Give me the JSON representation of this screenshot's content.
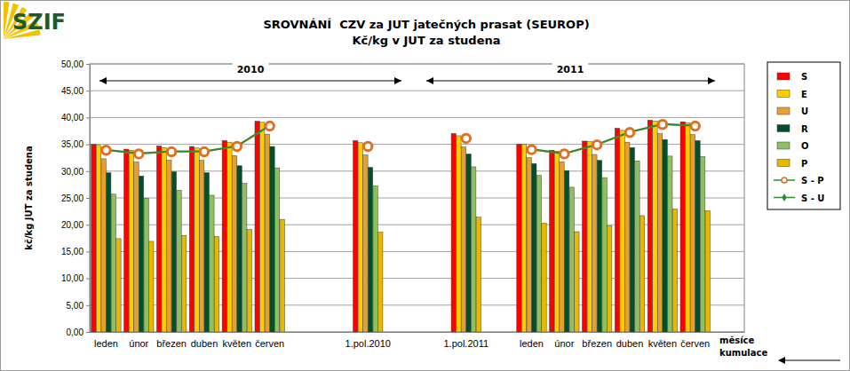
{
  "chart_data": {
    "type": "bar",
    "logo": "SZIF",
    "title": "SROVNÁNÍ  CZV za JUT jatečných prasat (SEUROP)",
    "subtitle": "Kč/kg v JUT za studena",
    "y_label": "kč/kg JUT za studena",
    "annotations": [
      "2010",
      "2011",
      "měsíce",
      "kumulace"
    ],
    "categories": [
      "leden",
      "únor",
      "březen",
      "duben",
      "květen",
      "červen",
      null,
      null,
      "1.pol.2010",
      null,
      null,
      "1.pol.2011",
      null,
      "leden",
      "únor",
      "březen",
      "duben",
      "květen",
      "červen",
      null
    ],
    "series": [
      {
        "name": "S",
        "type": "bar",
        "color": "#ff0000",
        "values": [
          35.0,
          34.1,
          34.7,
          34.6,
          35.7,
          39.3,
          null,
          null,
          35.7,
          null,
          null,
          37.0,
          null,
          35.0,
          33.9,
          35.6,
          38.0,
          39.5,
          39.2,
          null
        ]
      },
      {
        "name": "E",
        "type": "bar",
        "color": "#ffcc00",
        "values": [
          34.8,
          33.9,
          34.4,
          34.3,
          35.4,
          39.1,
          null,
          null,
          35.3,
          null,
          null,
          36.6,
          null,
          35.0,
          33.7,
          35.5,
          37.6,
          39.3,
          39.0,
          null
        ]
      },
      {
        "name": "U",
        "type": "bar",
        "color": "#e6a030",
        "values": [
          32.3,
          31.7,
          32.0,
          32.0,
          32.9,
          36.9,
          null,
          null,
          33.0,
          null,
          null,
          34.5,
          null,
          32.5,
          31.7,
          33.1,
          35.4,
          37.0,
          36.8,
          null
        ]
      },
      {
        "name": "R",
        "type": "bar",
        "color": "#00502a",
        "values": [
          29.7,
          29.1,
          29.9,
          29.7,
          31.0,
          34.6,
          null,
          null,
          30.7,
          null,
          null,
          33.2,
          null,
          31.4,
          30.1,
          32.0,
          34.4,
          35.9,
          35.7,
          null
        ]
      },
      {
        "name": "O",
        "type": "bar",
        "color": "#8fc060",
        "values": [
          25.7,
          24.9,
          26.4,
          25.5,
          27.7,
          30.6,
          null,
          null,
          27.2,
          null,
          null,
          30.8,
          null,
          29.2,
          27.0,
          28.8,
          31.9,
          32.8,
          32.7,
          null
        ]
      },
      {
        "name": "P",
        "type": "bar",
        "color": "#e8b800",
        "values": [
          17.4,
          16.9,
          18.0,
          17.8,
          19.1,
          21.0,
          null,
          null,
          18.6,
          null,
          null,
          21.4,
          null,
          20.3,
          18.7,
          19.8,
          21.7,
          22.9,
          22.6,
          null
        ]
      },
      {
        "name": "S - P",
        "type": "line",
        "color": "#e07020",
        "marker": "circle",
        "values": [
          33.9,
          33.2,
          33.6,
          33.6,
          34.6,
          38.4,
          null,
          null,
          34.6,
          null,
          null,
          36.1,
          null,
          34.0,
          33.2,
          34.9,
          37.2,
          38.7,
          38.4,
          null
        ]
      },
      {
        "name": "S - U",
        "type": "line",
        "color": "#2e8b2e",
        "marker": "diamond",
        "values": [
          34.0,
          33.3,
          33.7,
          33.7,
          34.7,
          38.5,
          null,
          null,
          null,
          null,
          null,
          null,
          null,
          34.1,
          33.3,
          35.0,
          37.3,
          38.8,
          38.5,
          null
        ]
      }
    ],
    "ylim": [
      0,
      50
    ],
    "yticks": [
      {
        "value": 0,
        "label": "0,00"
      },
      {
        "value": 5,
        "label": "5,00"
      },
      {
        "value": 10,
        "label": "10,00"
      },
      {
        "value": 15,
        "label": "15,00"
      },
      {
        "value": 20,
        "label": "20,00"
      },
      {
        "value": 25,
        "label": "25,00"
      },
      {
        "value": 30,
        "label": "30,00"
      },
      {
        "value": 35,
        "label": "35,00"
      },
      {
        "value": 40,
        "label": "40,00"
      },
      {
        "value": 45,
        "label": "45,00"
      },
      {
        "value": 50,
        "label": "50,00"
      }
    ],
    "grid": true,
    "legend": "right"
  }
}
